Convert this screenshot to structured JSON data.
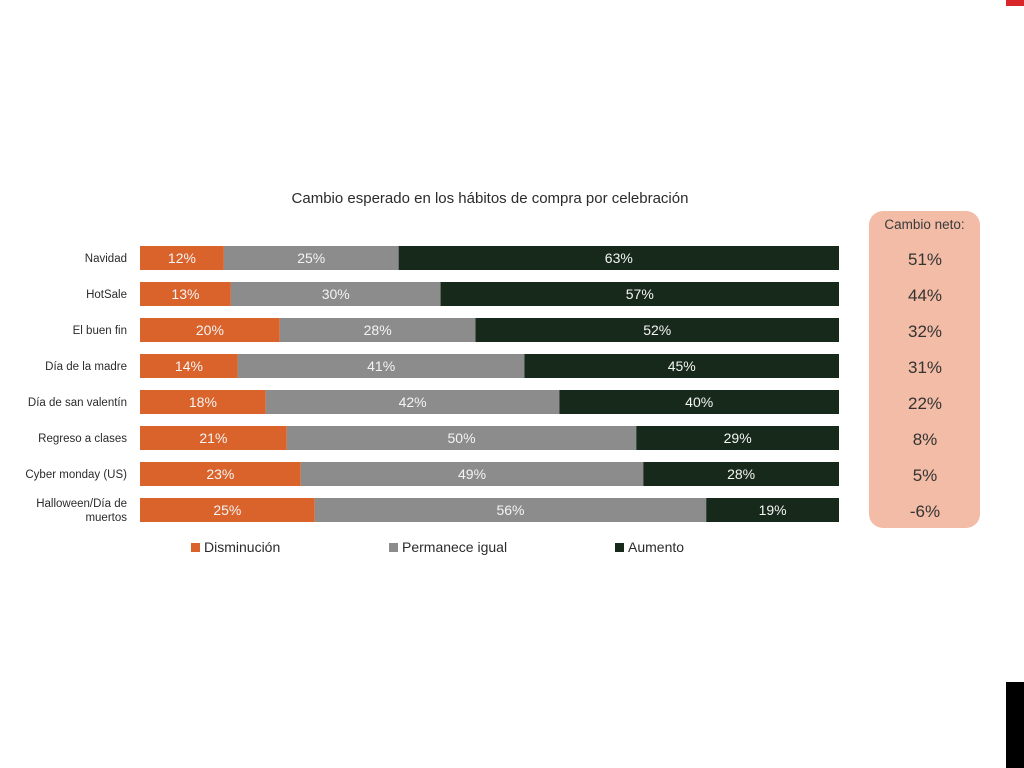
{
  "chart_data": {
    "type": "bar",
    "orientation": "horizontal",
    "stacked": true,
    "title": "Cambio esperado en los hábitos de compra por celebración",
    "categories": [
      "Navidad",
      "HotSale",
      "El buen fin",
      "Día de la madre",
      "Día de san valentín",
      "Regreso a clases",
      "Cyber monday (US)",
      "Halloween/Día de muertos"
    ],
    "series": [
      {
        "name": "Disminución",
        "color": "#d9632a",
        "values": [
          12,
          13,
          20,
          14,
          18,
          21,
          23,
          25
        ],
        "labels": [
          "12%",
          "13%",
          "20%",
          "14%",
          "18%",
          "21%",
          "23%",
          "25%"
        ]
      },
      {
        "name": "Permanece igual",
        "color": "#8c8c8c",
        "values": [
          25,
          30,
          28,
          41,
          42,
          50,
          49,
          56
        ],
        "labels": [
          "25%",
          "30%",
          "28%",
          "41%",
          "42%",
          "50%",
          "49%",
          "56%"
        ]
      },
      {
        "name": "Aumento",
        "color": "#17291b",
        "values": [
          63,
          57,
          52,
          45,
          40,
          29,
          28,
          19
        ],
        "labels": [
          "63%",
          "57%",
          "52%",
          "45%",
          "40%",
          "29%",
          "28%",
          "19%"
        ]
      }
    ],
    "xlim": [
      0,
      100
    ],
    "grid": false,
    "legend": "bottom",
    "net_change": {
      "header": "Cambio neto:",
      "values": [
        51,
        44,
        32,
        31,
        22,
        8,
        5,
        -6
      ],
      "labels": [
        "51%",
        "44%",
        "32%",
        "31%",
        "22%",
        "8%",
        "5%",
        "-6%"
      ],
      "panel_color": "#f2bca6"
    }
  },
  "decoration": {
    "accent_top_color": "#d9262b",
    "accent_bottom_color": "#000000"
  }
}
